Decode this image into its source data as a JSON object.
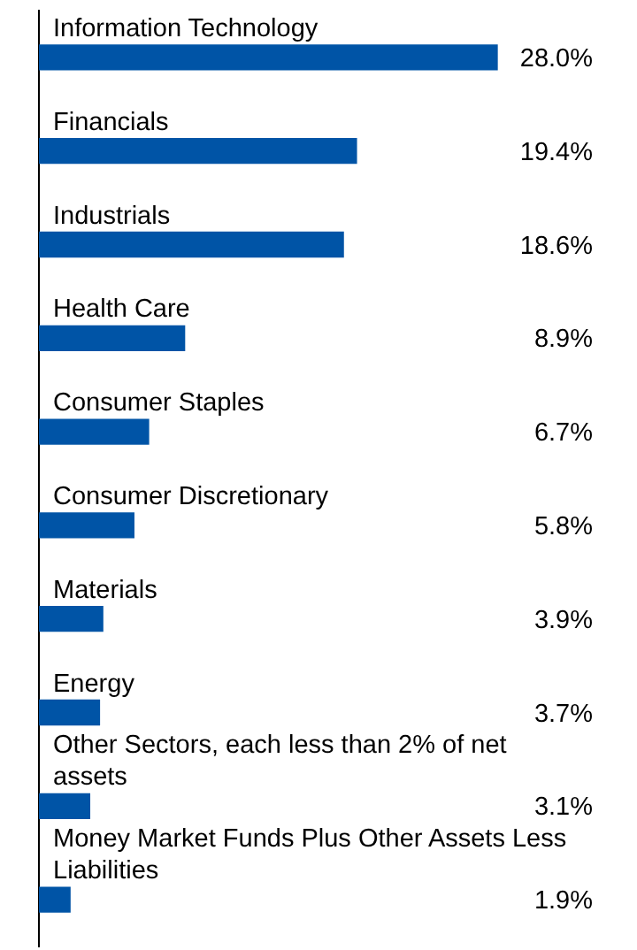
{
  "chart_data": {
    "type": "bar",
    "orientation": "horizontal",
    "categories": [
      "Information Technology",
      "Financials",
      "Industrials",
      "Health Care",
      "Consumer Staples",
      "Consumer Discretionary",
      "Materials",
      "Energy",
      "Other Sectors, each less than 2% of net assets",
      "Money Market Funds Plus Other Assets Less Liabilities"
    ],
    "values": [
      28.0,
      19.4,
      18.6,
      8.9,
      6.7,
      5.8,
      3.9,
      3.7,
      3.1,
      1.9
    ],
    "value_labels": [
      "28.0%",
      "19.4%",
      "18.6%",
      "8.9%",
      "6.7%",
      "5.8%",
      "3.9%",
      "3.7%",
      "3.1%",
      "1.9%"
    ],
    "color": "#0054a6"
  }
}
